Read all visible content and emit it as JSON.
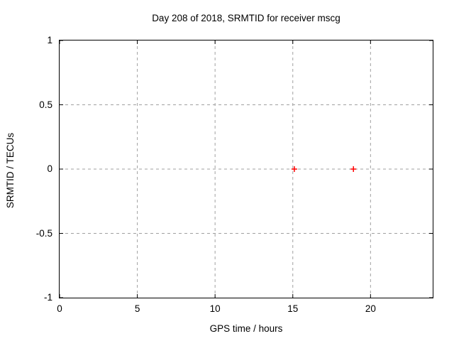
{
  "chart_data": {
    "type": "scatter",
    "title": "Day 208 of 2018, SRMTID for receiver mscg",
    "xlabel": "GPS time / hours",
    "ylabel": "SRMTID / TECUs",
    "xlim": [
      0,
      24
    ],
    "ylim": [
      -1,
      1
    ],
    "xticks": [
      0,
      5,
      10,
      15,
      20
    ],
    "xtick_labels": [
      "0",
      "5",
      "10",
      "15",
      "20"
    ],
    "yticks": [
      -1,
      -0.5,
      0,
      0.5,
      1
    ],
    "ytick_labels": [
      "-1",
      "-0.5",
      "0",
      "0.5",
      "1"
    ],
    "grid": true,
    "grid_style": "dashed",
    "ticks": "inward-mirrored",
    "legend": "none",
    "series": [
      {
        "name": "SRMTID",
        "marker": "plus",
        "color": "#ff0000",
        "points": [
          {
            "x": 15.1,
            "y": 0.0
          },
          {
            "x": 18.9,
            "y": 0.0
          }
        ]
      }
    ],
    "colors": {
      "background": "#ffffff",
      "text": "#000000",
      "axis_border": "#000000",
      "tick": "#000000",
      "grid": "#a0a0a0",
      "marker": "#ff0000"
    }
  }
}
